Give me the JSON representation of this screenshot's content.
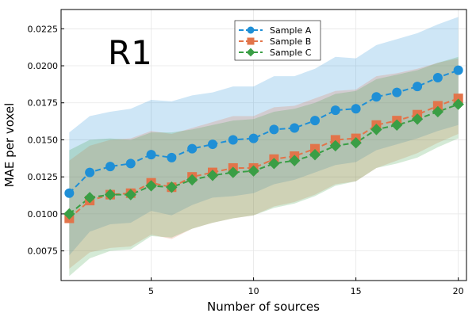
{
  "chart_data": {
    "type": "line",
    "title": "",
    "annotation": "R1",
    "xlabel": "Number of sources",
    "ylabel": "MAE per voxel",
    "xlim": [
      0.6,
      20.4
    ],
    "ylim": [
      0.0055,
      0.0238
    ],
    "xticks": [
      5,
      10,
      15,
      20
    ],
    "xtick_labels": [
      "5",
      "10",
      "15",
      "20"
    ],
    "yticks": [
      0.0075,
      0.01,
      0.0125,
      0.015,
      0.0175,
      0.02,
      0.0225
    ],
    "ytick_labels": [
      "0.0075",
      "0.0100",
      "0.0125",
      "0.0150",
      "0.0175",
      "0.0200",
      "0.0225"
    ],
    "grid": true,
    "legend_position": "top-center",
    "x": [
      1,
      2,
      3,
      4,
      5,
      6,
      7,
      8,
      9,
      10,
      11,
      12,
      13,
      14,
      15,
      16,
      17,
      18,
      19,
      20
    ],
    "series": [
      {
        "name": "Sample A",
        "color": "#1f8fd6",
        "marker": "circle",
        "values": [
          0.0114,
          0.0128,
          0.0132,
          0.0134,
          0.014,
          0.0138,
          0.0144,
          0.0147,
          0.015,
          0.0151,
          0.0157,
          0.0158,
          0.0163,
          0.017,
          0.0171,
          0.0179,
          0.0182,
          0.0186,
          0.0192,
          0.0197
        ],
        "upper": [
          0.0155,
          0.0166,
          0.0169,
          0.0171,
          0.0177,
          0.0176,
          0.018,
          0.0182,
          0.0186,
          0.0186,
          0.0193,
          0.0193,
          0.0198,
          0.0206,
          0.0205,
          0.0214,
          0.0218,
          0.0222,
          0.0228,
          0.0233
        ],
        "lower": [
          0.0072,
          0.0088,
          0.0093,
          0.0094,
          0.0102,
          0.0099,
          0.0106,
          0.0111,
          0.0112,
          0.0114,
          0.012,
          0.0123,
          0.0128,
          0.0133,
          0.0135,
          0.0143,
          0.0147,
          0.0151,
          0.0156,
          0.016
        ]
      },
      {
        "name": "Sample B",
        "color": "#e2744a",
        "marker": "square",
        "values": [
          0.0097,
          0.0109,
          0.0113,
          0.0114,
          0.0121,
          0.0118,
          0.0125,
          0.0128,
          0.0131,
          0.0131,
          0.0137,
          0.0139,
          0.0144,
          0.015,
          0.0151,
          0.016,
          0.0163,
          0.0167,
          0.0173,
          0.0178
        ],
        "upper": [
          0.0136,
          0.0146,
          0.015,
          0.0151,
          0.0156,
          0.0154,
          0.0158,
          0.0162,
          0.0166,
          0.0166,
          0.0172,
          0.0173,
          0.0178,
          0.0183,
          0.0184,
          0.0193,
          0.0195,
          0.0198,
          0.0202,
          0.0205
        ],
        "lower": [
          0.0063,
          0.0074,
          0.0077,
          0.0078,
          0.0086,
          0.0083,
          0.009,
          0.0094,
          0.0097,
          0.0099,
          0.0105,
          0.0108,
          0.0113,
          0.012,
          0.0122,
          0.0131,
          0.0136,
          0.0141,
          0.0148,
          0.0154
        ]
      },
      {
        "name": "Sample C",
        "color": "#3a9e45",
        "marker": "diamond",
        "values": [
          0.01,
          0.0111,
          0.0113,
          0.0113,
          0.0119,
          0.0118,
          0.0123,
          0.0126,
          0.0128,
          0.0129,
          0.0134,
          0.0136,
          0.014,
          0.0146,
          0.0148,
          0.0157,
          0.016,
          0.0164,
          0.0169,
          0.0174
        ],
        "upper": [
          0.0143,
          0.015,
          0.0151,
          0.015,
          0.0155,
          0.0155,
          0.0157,
          0.016,
          0.0163,
          0.0164,
          0.0169,
          0.0171,
          0.0175,
          0.0181,
          0.0183,
          0.0191,
          0.0194,
          0.0197,
          0.0202,
          0.0206
        ],
        "lower": [
          0.0058,
          0.007,
          0.0075,
          0.0076,
          0.0085,
          0.0084,
          0.009,
          0.0094,
          0.0097,
          0.0099,
          0.0104,
          0.0107,
          0.0112,
          0.0119,
          0.0122,
          0.0131,
          0.0134,
          0.0138,
          0.0145,
          0.0151
        ]
      }
    ]
  }
}
